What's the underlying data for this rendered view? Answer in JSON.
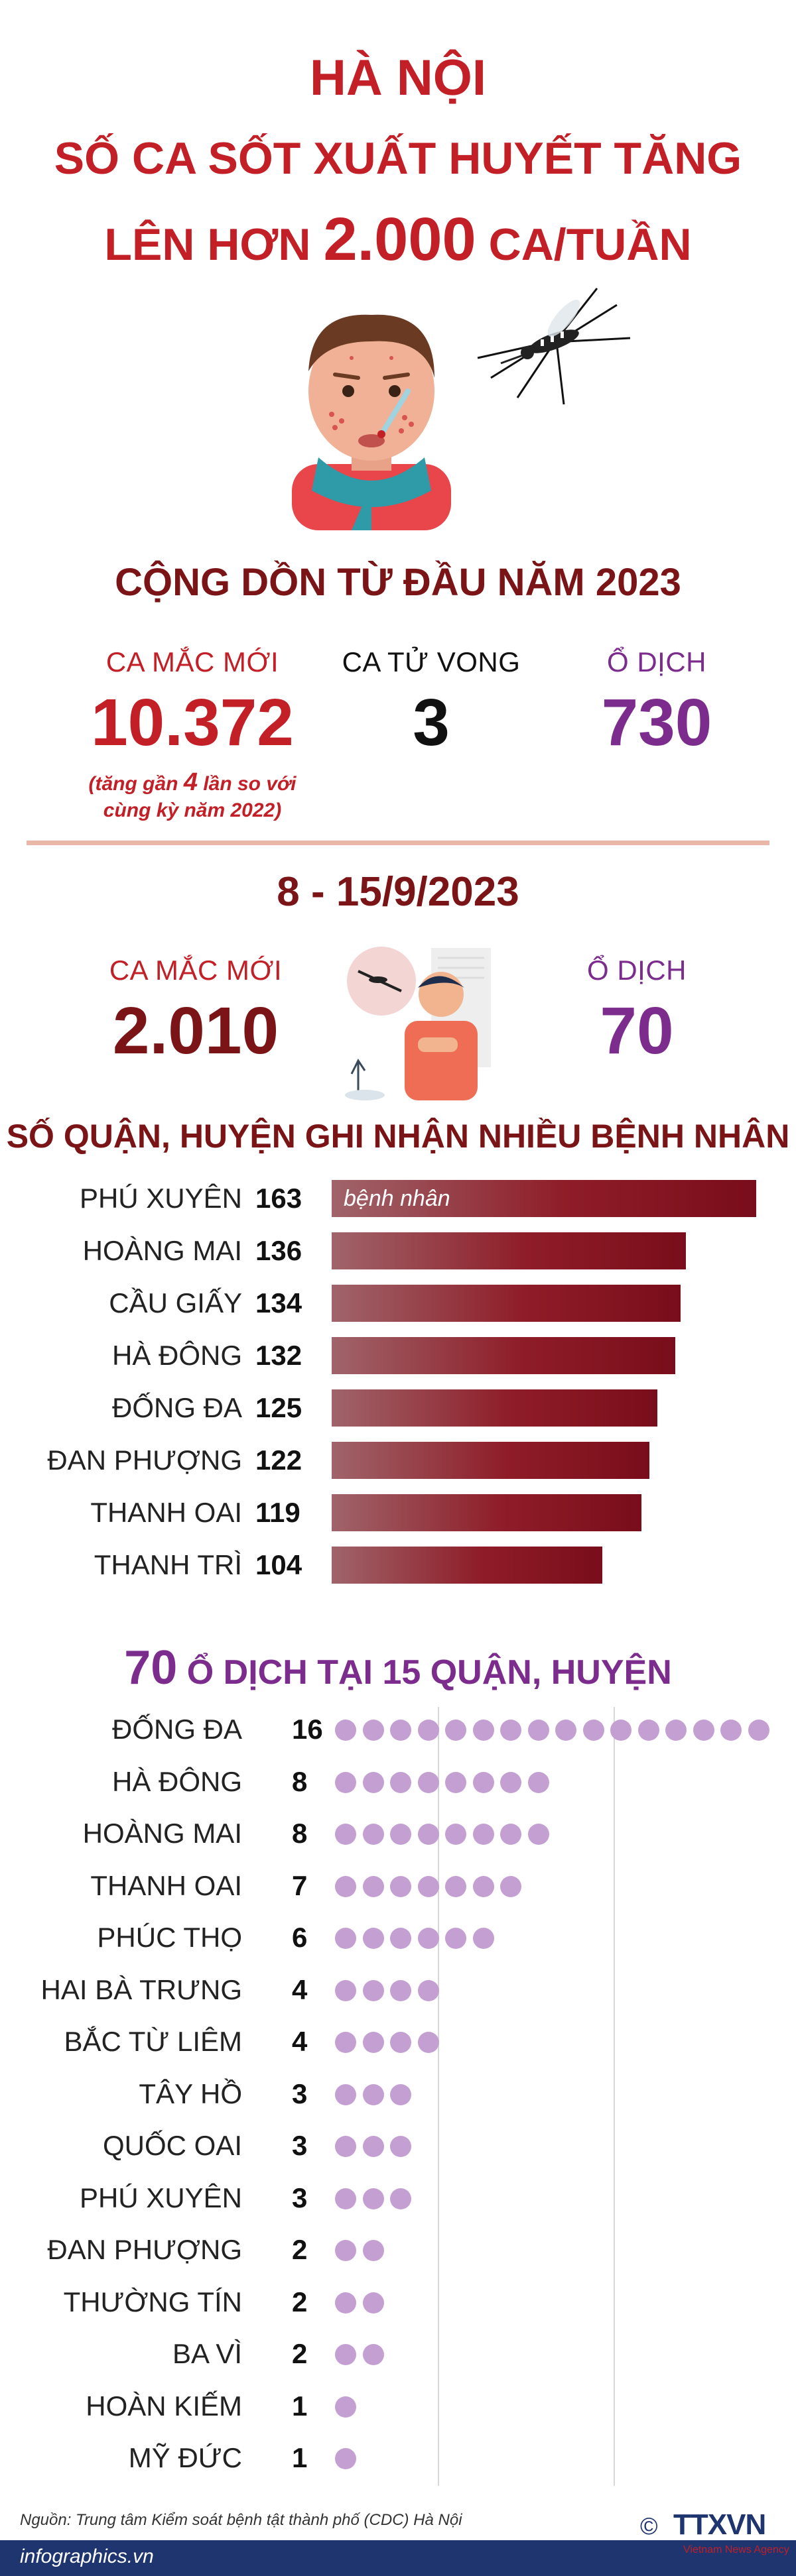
{
  "header": {
    "line1": "HÀ NỘI",
    "line2": "SỐ CA SỐT XUẤT HUYẾT TĂNG",
    "line3_pre": "LÊN HƠN",
    "line3_num": "2.000",
    "line3_post": "CA/TUẦN"
  },
  "cumulative": {
    "title": "CỘNG DỒN TỪ ĐẦU NĂM 2023",
    "new_cases_label": "CA MẮC MỚI",
    "new_cases_value": "10.372",
    "note_pre": "(tăng gần",
    "note_num": "4",
    "note_post": "lần so với",
    "note_line2": "cùng kỳ năm 2022)",
    "deaths_label": "CA TỬ VONG",
    "deaths_value": "3",
    "outbreaks_label": "Ổ DỊCH",
    "outbreaks_value": "730"
  },
  "week": {
    "title": "8 - 15/9/2023",
    "new_cases_label": "CA MẮC MỚI",
    "new_cases_value": "2.010",
    "outbreaks_label": "Ổ DỊCH",
    "outbreaks_value": "70"
  },
  "colors": {
    "title_red": "#c21f27",
    "dark_red": "#7a1416",
    "purple": "#7b2c8c",
    "dot_purple": "#c4a0d2",
    "bar_dark": "#7a0d1b"
  },
  "chart_data": [
    {
      "type": "bar",
      "title": "SỐ QUẬN, HUYỆN GHI NHẬN NHIỀU BỆNH NHÂN",
      "unit_label": "bệnh nhân",
      "categories": [
        "PHÚ XUYÊN",
        "HOÀNG MAI",
        "CẦU GIẤY",
        "HÀ ĐÔNG",
        "ĐỐNG ĐA",
        "ĐAN PHƯỢNG",
        "THANH OAI",
        "THANH TRÌ"
      ],
      "values": [
        163,
        136,
        134,
        132,
        125,
        122,
        119,
        104
      ]
    },
    {
      "type": "scatter",
      "title_num": "70",
      "title": "Ổ DỊCH TẠI 15 QUẬN, HUYỆN",
      "categories": [
        "ĐỐNG ĐA",
        "HÀ ĐÔNG",
        "HOÀNG MAI",
        "THANH OAI",
        "PHÚC THỌ",
        "HAI BÀ TRƯNG",
        "BẮC TỪ LIÊM",
        "TÂY HỒ",
        "QUỐC OAI",
        "PHÚ XUYÊN",
        "ĐAN PHƯỢNG",
        "THƯỜNG TÍN",
        "BA VÌ",
        "HOÀN KIẾM",
        "MỸ ĐỨC"
      ],
      "values": [
        16,
        8,
        8,
        7,
        6,
        4,
        4,
        3,
        3,
        3,
        2,
        2,
        2,
        1,
        1
      ]
    }
  ],
  "footer": {
    "source": "Nguồn: Trung tâm Kiểm soát bệnh tật thành phố (CDC) Hà Nội",
    "site": "infographics.vn",
    "copyright": "©",
    "logo_text": "TTXVN",
    "logo_sub": "Vietnam News Agency"
  }
}
